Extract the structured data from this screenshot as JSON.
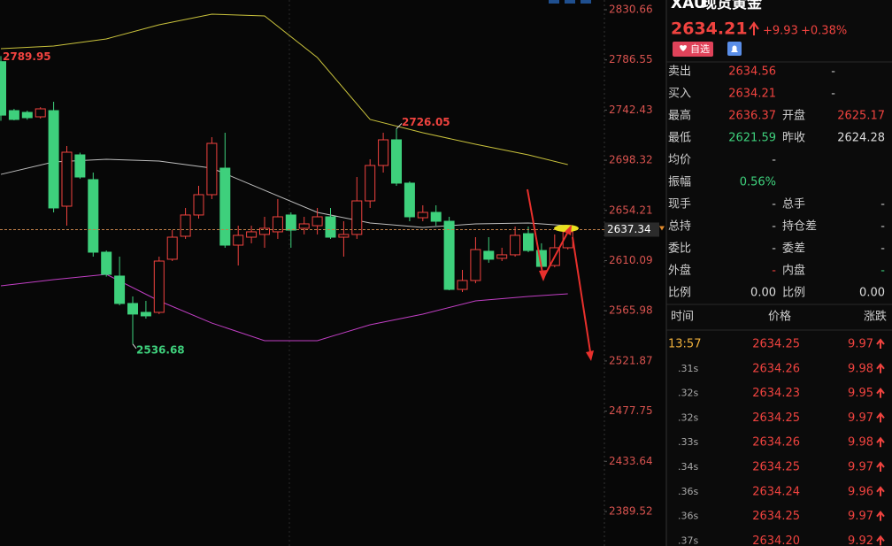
{
  "chart_data": {
    "type": "candlestick",
    "up_color": "#f0433f",
    "down_color": "#3ed07c",
    "open": [
      2785,
      2741.97,
      2740.41,
      2736.52,
      2741.97,
      2657.95,
      2703.07,
      2681.3,
      2617.5,
      2596.5,
      2572.4,
      2564.6,
      2564.6,
      2611.3,
      2631.5,
      2650.2,
      2668.06,
      2691.4,
      2623.7,
      2630.7,
      2633.1,
      2635.4,
      2650.2,
      2638.5,
      2640.8,
      2648.6,
      2630.7,
      2633.1,
      2662.6,
      2693.73,
      2716.3,
      2678.2,
      2647.8,
      2652.5,
      2644.7,
      2584.8,
      2592.6,
      2618.3,
      2612.1,
      2615.2,
      2633.8,
      2619.0,
      2605.8,
      2621.4
    ],
    "high": [
      2789.95,
      2743.53,
      2741.97,
      2745,
      2749.75,
      2710.85,
      2705,
      2687.5,
      2619,
      2613.6,
      2578.6,
      2574.7,
      2613.6,
      2636.9,
      2656.4,
      2675.8,
      2718.63,
      2722.52,
      2640.8,
      2640.8,
      2648.6,
      2664.2,
      2652.5,
      2648.6,
      2656.4,
      2656.4,
      2644.7,
      2683.6,
      2699.2,
      2722.52,
      2726.05,
      2679.7,
      2658.7,
      2658.7,
      2648.6,
      2601.9,
      2630.7,
      2630.7,
      2621.4,
      2640.05,
      2640.05,
      2625.3,
      2633.1,
      2638.5
    ],
    "low": [
      2733,
      2733.4,
      2734,
      2735,
      2652.5,
      2640.8,
      2682,
      2613.6,
      2596,
      2570.8,
      2536.68,
      2559.1,
      2563.1,
      2609.7,
      2629.2,
      2647.06,
      2664.2,
      2621.4,
      2605.8,
      2625.3,
      2621.4,
      2629.2,
      2621.4,
      2633.1,
      2633.1,
      2629.2,
      2613.6,
      2629.2,
      2656.4,
      2687.5,
      2675.8,
      2644.7,
      2644.7,
      2640.8,
      2584.0,
      2582.5,
      2590.2,
      2608.2,
      2609.7,
      2613.6,
      2617.5,
      2602.7,
      2604.2,
      2619.8
    ],
    "close": [
      2738,
      2734.19,
      2735.75,
      2743.53,
      2656.4,
      2705.4,
      2683.6,
      2617.5,
      2598.0,
      2572.4,
      2563.1,
      2561.5,
      2609.7,
      2630.7,
      2650.2,
      2668.06,
      2713.16,
      2623.7,
      2632.3,
      2635.4,
      2638.5,
      2648.6,
      2636.9,
      2642.4,
      2648.6,
      2630.7,
      2633.1,
      2662.6,
      2693.73,
      2716.3,
      2678.2,
      2648.6,
      2652.5,
      2644.7,
      2584.8,
      2592.6,
      2619.8,
      2611.3,
      2615.2,
      2632.3,
      2619.0,
      2605.0,
      2621.4,
      2635.4
    ],
    "band_x": [
      0,
      4,
      8,
      12,
      16,
      20,
      24,
      28,
      32,
      36,
      40,
      43
    ],
    "bands": [
      {
        "color": "#c9c23c",
        "values": [
          2796.4,
          2798.8,
          2805.0,
          2817.4,
          2826.8,
          2825.2,
          2788.65,
          2734.2,
          2722.5,
          2712.4,
          2703.1,
          2694.5
        ]
      },
      {
        "color": "#bdbdbd",
        "values": [
          2685.9,
          2696.8,
          2699.2,
          2697.6,
          2691.4,
          2671.9,
          2652.5,
          2643.2,
          2639.3,
          2642.4,
          2643.2,
          2640.8
        ]
      },
      {
        "color": "#c13fc4",
        "values": [
          2587.9,
          2593.4,
          2598.0,
          2574.7,
          2555.2,
          2539.7,
          2539.7,
          2553.7,
          2563.0,
          2574.7,
          2578.6,
          2580.9
        ]
      }
    ],
    "ylim": [
      2359.18,
      2839.22
    ],
    "yticks": [
      2830.66,
      2786.55,
      2742.43,
      2698.32,
      2654.21,
      2610.09,
      2565.98,
      2521.87,
      2477.75,
      2433.64,
      2389.52
    ],
    "last_price": 2637.34
  },
  "quote": {
    "symbol": "XAU",
    "name": "现货黄金",
    "price": "2634.21",
    "change": "+9.93",
    "change_pct": "+0.38%",
    "watch_button": "自选",
    "rows": [
      [
        {
          "label": "卖出",
          "value": "2634.56",
          "color": "#f0433f"
        },
        {
          "value": "-",
          "color": "#cccccc"
        }
      ],
      [
        {
          "label": "买入",
          "value": "2634.21",
          "color": "#f0433f"
        },
        {
          "value": "-",
          "color": "#cccccc"
        }
      ],
      [
        {
          "label": "最高",
          "value": "2636.37",
          "color": "#f0433f"
        },
        {
          "label": "开盘",
          "value": "2625.17",
          "color": "#f0433f"
        }
      ],
      [
        {
          "label": "最低",
          "value": "2621.59",
          "color": "#3ed07c"
        },
        {
          "label": "昨收",
          "value": "2624.28",
          "color": "#dddddd"
        }
      ],
      [
        {
          "label": "均价",
          "value": "-",
          "color": "#cccccc"
        }
      ],
      [
        {
          "label": "振幅",
          "value": "0.56%",
          "color": "#3ed07c"
        }
      ],
      [
        {
          "label": "现手",
          "value": "-",
          "color": "#cccccc"
        },
        {
          "label": "总手",
          "value": "-",
          "color": "#cccccc"
        }
      ],
      [
        {
          "label": "总持",
          "value": "-",
          "color": "#cccccc"
        },
        {
          "label": "持仓差",
          "value": "-",
          "color": "#cccccc"
        }
      ],
      [
        {
          "label": "委比",
          "value": "-",
          "color": "#cccccc"
        },
        {
          "label": "委差",
          "value": "-",
          "color": "#cccccc"
        }
      ],
      [
        {
          "label": "外盘",
          "value": "-",
          "color": "#f0433f"
        },
        {
          "label": "内盘",
          "value": "-",
          "color": "#3ed07c"
        }
      ],
      [
        {
          "label": "比例",
          "value": "0.00",
          "color": "#dddddd"
        },
        {
          "label": "比例",
          "value": "0.00",
          "color": "#dddddd"
        }
      ]
    ]
  },
  "ticks": {
    "header": [
      "时间",
      "价格",
      "涨跌"
    ],
    "rows": [
      [
        "13:57",
        "2634.25",
        "9.97"
      ],
      [
        ".31s",
        "2634.26",
        "9.98"
      ],
      [
        ".32s",
        "2634.23",
        "9.95"
      ],
      [
        ".32s",
        "2634.25",
        "9.97"
      ],
      [
        ".33s",
        "2634.26",
        "9.98"
      ],
      [
        ".34s",
        "2634.25",
        "9.97"
      ],
      [
        ".36s",
        "2634.24",
        "9.96"
      ],
      [
        ".36s",
        "2634.25",
        "9.97"
      ],
      [
        ".37s",
        "2634.20",
        "9.92"
      ]
    ]
  }
}
